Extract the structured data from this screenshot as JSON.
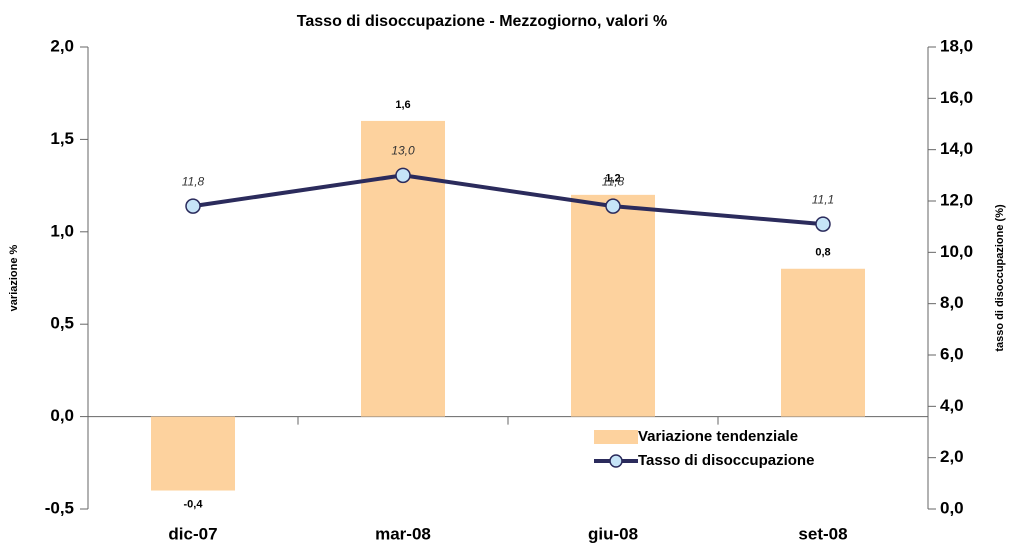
{
  "chart_data": {
    "type": "combo",
    "title": "Tasso di disoccupazione - Mezzogiorno, valori %",
    "y_label": "variazione %",
    "y2_label": "tasso di disoccupazione (%)",
    "categories": [
      "dic-07",
      "mar-08",
      "giu-08",
      "set-08"
    ],
    "series": [
      {
        "name": "Variazione tendenziale",
        "type": "bar",
        "color": "#fdd29e",
        "values": [
          -0.4,
          1.6,
          1.2,
          0.8
        ],
        "value_labels": [
          "-0,4",
          "1,6",
          "1,2",
          "0,8"
        ]
      },
      {
        "name": "Tasso di disoccupazione",
        "type": "line",
        "axis": "y2",
        "color": "#2b2b5c",
        "marker_color": "#c6e4f7",
        "values": [
          11.8,
          13.0,
          11.8,
          11.1
        ],
        "value_labels": [
          "11,8",
          "13,0",
          "11,8",
          "11,1"
        ]
      }
    ],
    "ylim": [
      -0.5,
      2.0
    ],
    "yticks": [
      {
        "value": -0.5,
        "label": "-0,5"
      },
      {
        "value": 0,
        "label": "0,0"
      },
      {
        "value": 0.5,
        "label": "0,5"
      },
      {
        "value": 1,
        "label": "1,0"
      },
      {
        "value": 1.5,
        "label": "1,5"
      },
      {
        "value": 2,
        "label": "2,0"
      }
    ],
    "y2lim": [
      0,
      18
    ],
    "y2ticks": [
      {
        "value": 0,
        "label": "0,0"
      },
      {
        "value": 2,
        "label": "2,0"
      },
      {
        "value": 4,
        "label": "4,0"
      },
      {
        "value": 6,
        "label": "6,0"
      },
      {
        "value": 8,
        "label": "8,0"
      },
      {
        "value": 10,
        "label": "10,0"
      },
      {
        "value": 12,
        "label": "12,0"
      },
      {
        "value": 14,
        "label": "14,0"
      },
      {
        "value": 16,
        "label": "16,0"
      },
      {
        "value": 18,
        "label": "18,0"
      }
    ],
    "legend": "lower right"
  }
}
